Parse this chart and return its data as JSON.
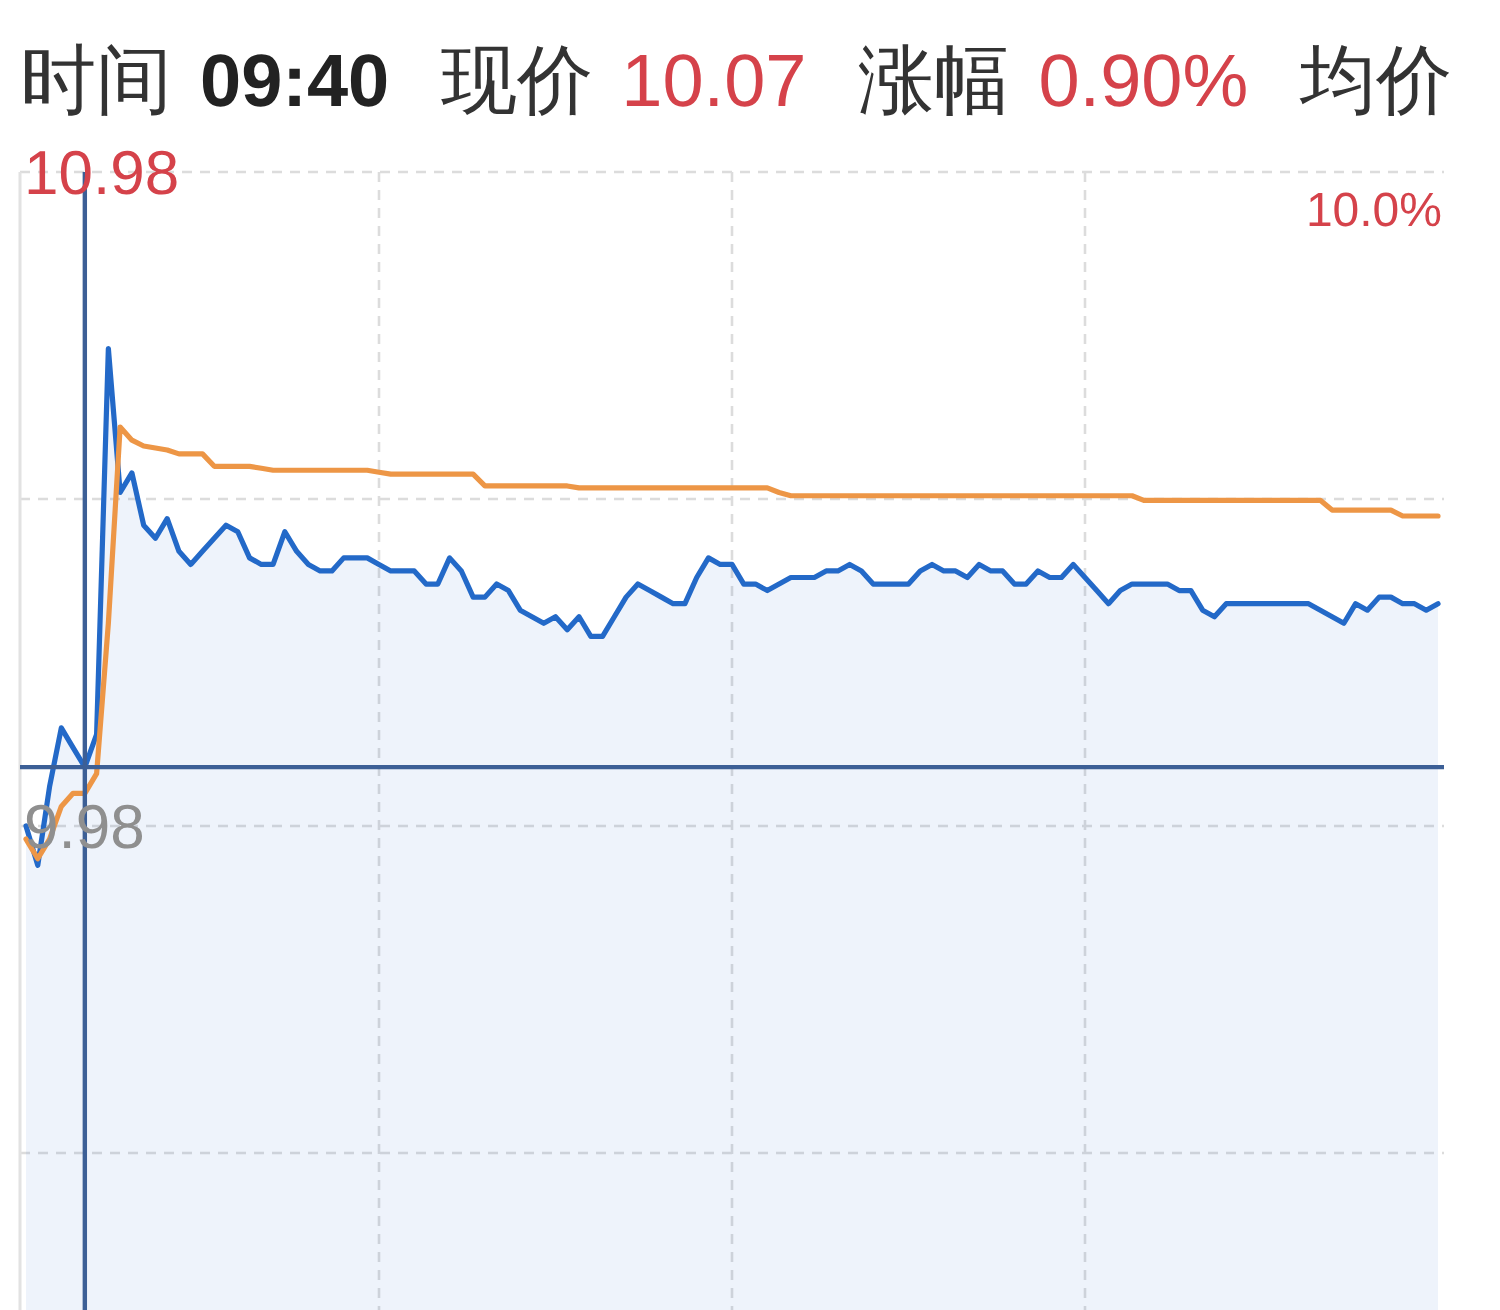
{
  "chart_data": {
    "type": "line",
    "annotations": [
      "时间",
      "09:40",
      "现价",
      "10.07",
      "涨幅",
      "0.90%",
      "均价",
      "10.0%"
    ],
    "categories": [
      null,
      null,
      null,
      null,
      null,
      null,
      null,
      null,
      null,
      null,
      null,
      null,
      null,
      null,
      null,
      null,
      null,
      null,
      null,
      null,
      null,
      null,
      null,
      null,
      null,
      null,
      null,
      null,
      null,
      null,
      null,
      null,
      null,
      null,
      null,
      null,
      null,
      null,
      null,
      null,
      null,
      null,
      null,
      null,
      null,
      null,
      null,
      null,
      null,
      null,
      null,
      null,
      null,
      null,
      null,
      null,
      null,
      null,
      null,
      null,
      null,
      null,
      null,
      null,
      null,
      null,
      null,
      null,
      null,
      null,
      null,
      null,
      null,
      null,
      null,
      null,
      null,
      null,
      null,
      null,
      null,
      null,
      null,
      null,
      null,
      null,
      null,
      null,
      null,
      null,
      null,
      null,
      null,
      null,
      null,
      null,
      null,
      null,
      null,
      null,
      null,
      null,
      null,
      null,
      null,
      null,
      null,
      null,
      null,
      null,
      null,
      null,
      null,
      null,
      null,
      null,
      null,
      null,
      null,
      null,
      null
    ],
    "series": [
      {
        "type": "area",
        "color": "#2369c8",
        "values": [
          9.98,
          9.92,
          10.04,
          10.13,
          10.1,
          10.07,
          10.12,
          10.71,
          10.49,
          10.52,
          10.44,
          10.42,
          10.45,
          10.4,
          10.38,
          10.4,
          10.42,
          10.44,
          10.43,
          10.39,
          10.38,
          10.38,
          10.43,
          10.4,
          10.38,
          10.37,
          10.37,
          10.39,
          10.39,
          10.39,
          10.38,
          10.37,
          10.37,
          10.37,
          10.35,
          10.35,
          10.39,
          10.37,
          10.33,
          10.33,
          10.35,
          10.34,
          10.31,
          10.3,
          10.29,
          10.3,
          10.28,
          10.3,
          10.27,
          10.27,
          10.3,
          10.33,
          10.35,
          10.34,
          10.33,
          10.32,
          10.32,
          10.36,
          10.39,
          10.38,
          10.38,
          10.35,
          10.35,
          10.34,
          10.35,
          10.36,
          10.36,
          10.36,
          10.37,
          10.37,
          10.38,
          10.37,
          10.35,
          10.35,
          10.35,
          10.35,
          10.37,
          10.38,
          10.37,
          10.37,
          10.36,
          10.38,
          10.37,
          10.37,
          10.35,
          10.35,
          10.37,
          10.36,
          10.36,
          10.38,
          10.36,
          10.34,
          10.32,
          10.34,
          10.35,
          10.35,
          10.35,
          10.35,
          10.34,
          10.34,
          10.31,
          10.3,
          10.32,
          10.32,
          10.32,
          10.32,
          10.32,
          10.32,
          10.32,
          10.32,
          10.31,
          10.3,
          10.29,
          10.32,
          10.31,
          10.33,
          10.33,
          10.32,
          10.32,
          10.31,
          10.32
        ]
      },
      {
        "type": "line",
        "color": "#ed9646",
        "values": [
          9.96,
          9.93,
          9.96,
          10.01,
          10.03,
          10.03,
          10.06,
          10.29,
          10.59,
          10.57,
          10.561,
          10.558,
          10.555,
          10.549,
          10.549,
          10.549,
          10.53,
          10.53,
          10.53,
          10.53,
          10.527,
          10.524,
          10.524,
          10.524,
          10.524,
          10.524,
          10.524,
          10.524,
          10.524,
          10.524,
          10.521,
          10.518,
          10.518,
          10.518,
          10.518,
          10.518,
          10.518,
          10.518,
          10.518,
          10.5,
          10.5,
          10.5,
          10.5,
          10.5,
          10.5,
          10.5,
          10.5,
          10.497,
          10.497,
          10.497,
          10.497,
          10.497,
          10.497,
          10.497,
          10.497,
          10.497,
          10.497,
          10.497,
          10.497,
          10.497,
          10.497,
          10.497,
          10.497,
          10.497,
          10.49,
          10.485,
          10.485,
          10.485,
          10.485,
          10.485,
          10.485,
          10.485,
          10.485,
          10.485,
          10.485,
          10.485,
          10.485,
          10.485,
          10.485,
          10.485,
          10.485,
          10.485,
          10.485,
          10.485,
          10.485,
          10.485,
          10.485,
          10.485,
          10.485,
          10.485,
          10.485,
          10.485,
          10.485,
          10.485,
          10.485,
          10.478,
          10.478,
          10.478,
          10.478,
          10.478,
          10.478,
          10.478,
          10.478,
          10.478,
          10.478,
          10.478,
          10.478,
          10.478,
          10.478,
          10.478,
          10.478,
          10.463,
          10.463,
          10.463,
          10.463,
          10.463,
          10.463,
          10.454,
          10.454,
          10.454,
          10.454
        ]
      }
    ],
    "ylim": [
      9.24,
      10.98
    ],
    "yticks": [
      {
        "value": 9.48,
        "label": null
      },
      9.98,
      {
        "value": 10.48,
        "label": null
      },
      10.98
    ],
    "grid": true,
    "ref_lines": [
      {
        "axis": "y",
        "value": 10.07,
        "color": "#3c5f96"
      }
    ]
  }
}
